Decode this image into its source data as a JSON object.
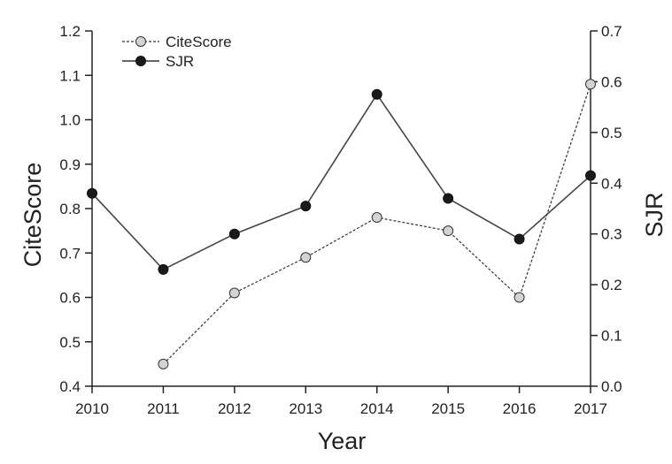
{
  "chart_data": {
    "type": "line",
    "xlabel": "Year",
    "ylabel_left": "CiteScore",
    "ylabel_right": "SJR",
    "categories": [
      "2010",
      "2011",
      "2012",
      "2013",
      "2014",
      "2015",
      "2016",
      "2017"
    ],
    "ylim_left": [
      0.4,
      1.2
    ],
    "ylim_right": [
      0.0,
      0.7
    ],
    "yticks_left": [
      "0.4",
      "0.5",
      "0.6",
      "0.7",
      "0.8",
      "0.9",
      "1.0",
      "1.1",
      "1.2"
    ],
    "yticks_right": [
      "0.0",
      "0.1",
      "0.2",
      "0.3",
      "0.4",
      "0.5",
      "0.6",
      "0.7"
    ],
    "grid": false,
    "legend_position": "top-left",
    "series": [
      {
        "name": "CiteScore",
        "axis": "left",
        "line_style": "dashed",
        "marker_color": "#d3d3d3",
        "values": [
          null,
          0.45,
          0.61,
          0.69,
          0.78,
          0.75,
          0.6,
          1.08
        ]
      },
      {
        "name": "SJR",
        "axis": "right",
        "line_style": "solid",
        "marker_color": "#1a1a1a",
        "values": [
          0.38,
          0.23,
          0.3,
          0.355,
          0.575,
          0.37,
          0.29,
          0.415
        ]
      }
    ]
  }
}
